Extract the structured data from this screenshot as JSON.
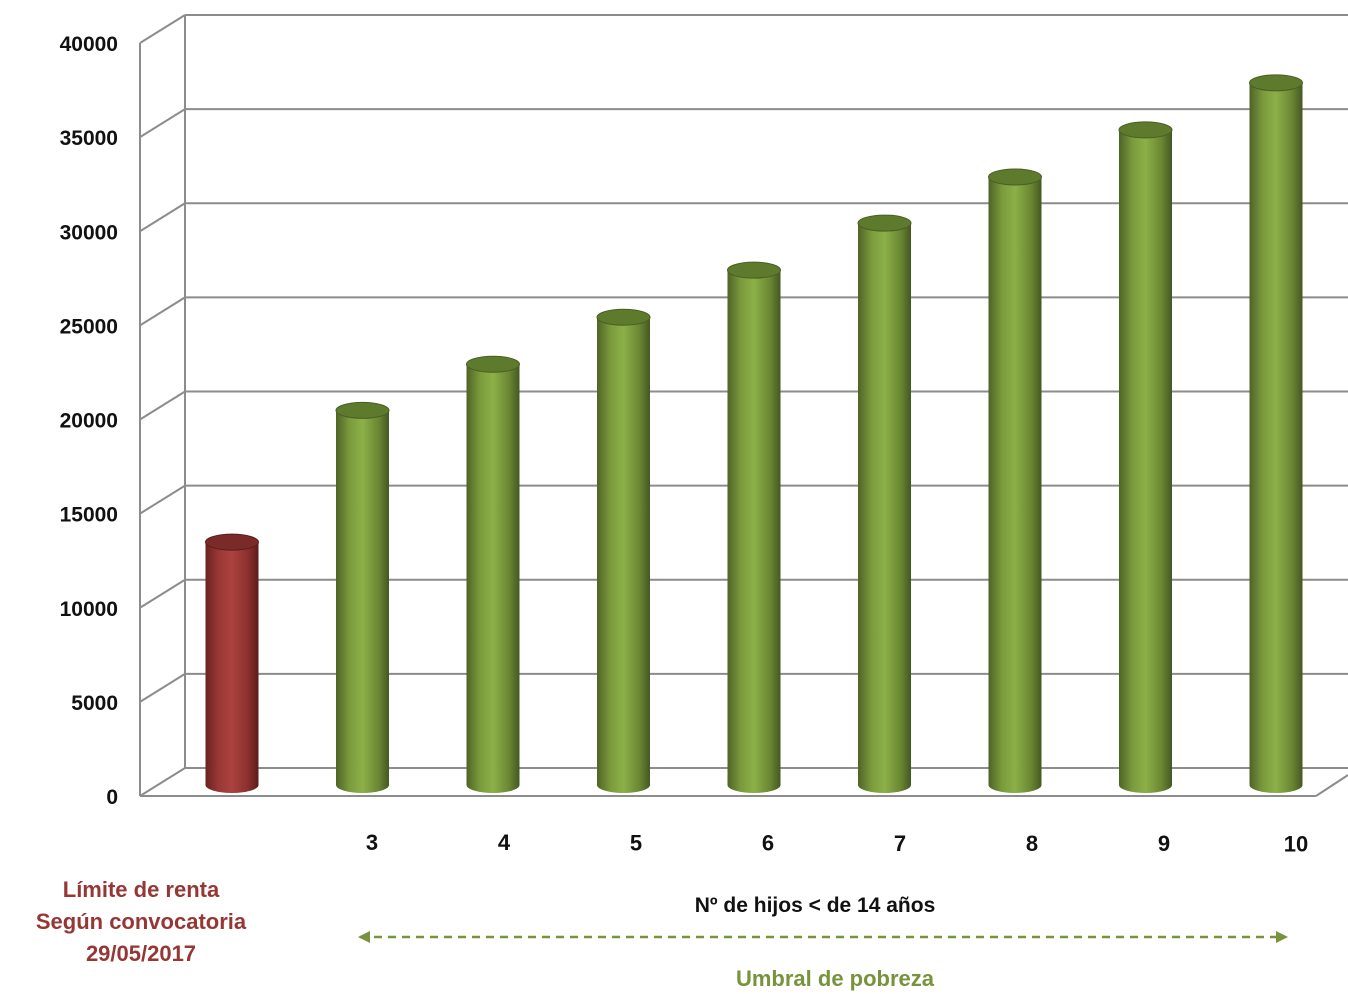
{
  "chart_data": {
    "type": "bar",
    "style": "3d-cylinder",
    "categories": [
      "",
      "3",
      "4",
      "5",
      "6",
      "7",
      "8",
      "9",
      "10"
    ],
    "values": [
      12900,
      19900,
      22350,
      24850,
      27350,
      29850,
      32300,
      34800,
      37300
    ],
    "bar_colors": [
      "#953735",
      "#77933c",
      "#77933c",
      "#77933c",
      "#77933c",
      "#77933c",
      "#77933c",
      "#77933c",
      "#77933c"
    ],
    "ylim": [
      0,
      40000
    ],
    "yticks": [
      "0",
      "5000",
      "10000",
      "15000",
      "20000",
      "25000",
      "30000",
      "35000",
      "40000"
    ],
    "xlabel": "Nº de hijos < de 14 años",
    "ylabel": "",
    "grid": true
  },
  "annotations": {
    "limit_lines": [
      "Límite de renta",
      "Según convocatoria",
      "29/05/2017"
    ],
    "limit_color": "#953735",
    "umbral": "Umbral de pobreza",
    "umbral_color": "#77933c"
  }
}
